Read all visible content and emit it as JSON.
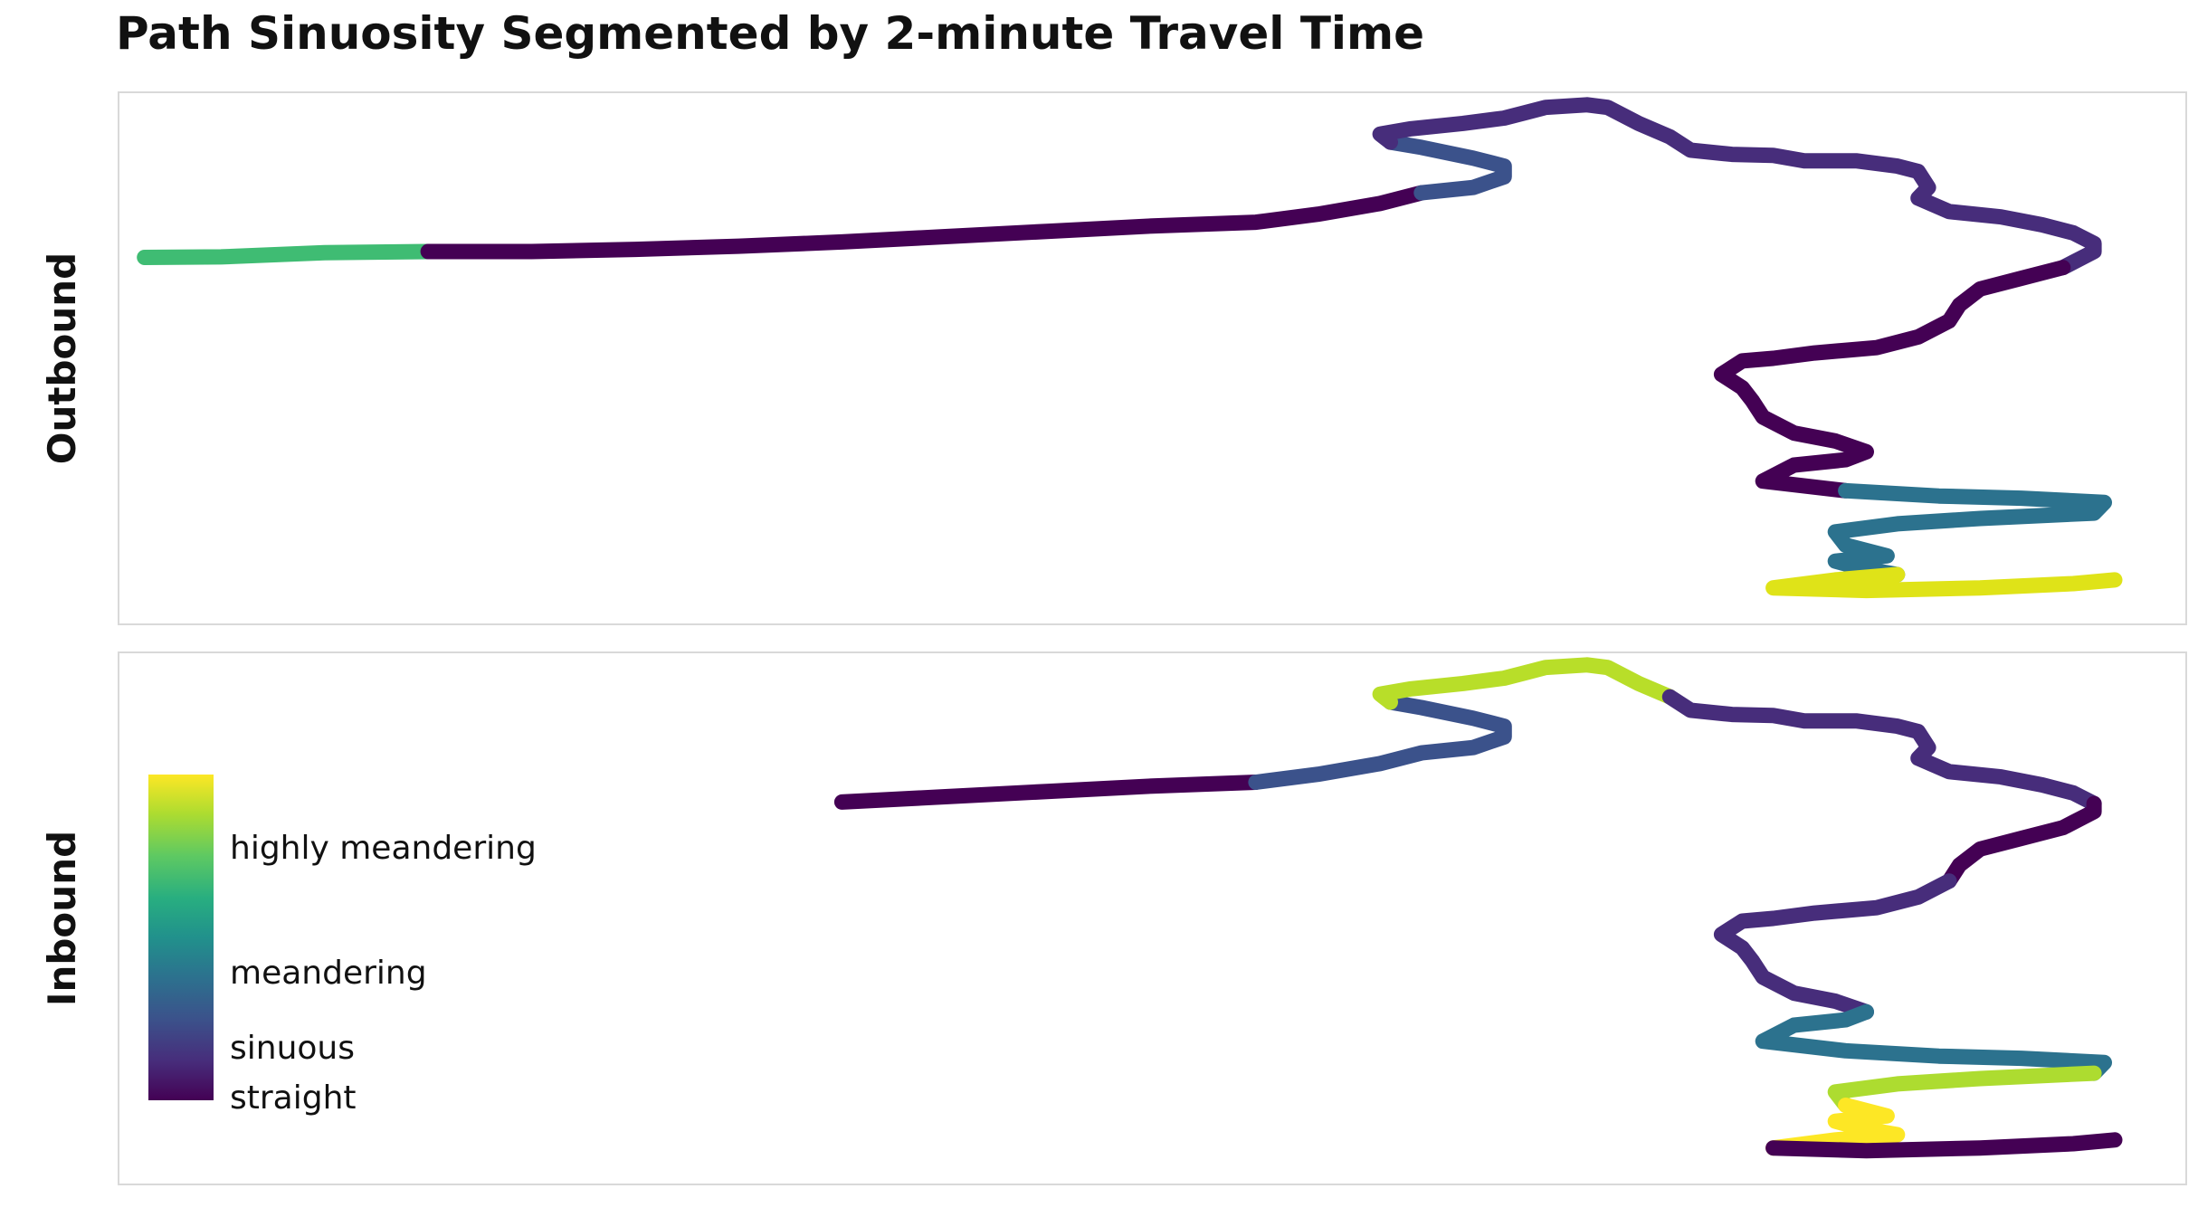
{
  "chart_data": {
    "type": "path",
    "title": "Path Sinuosity Segmented by 2-minute Travel Time",
    "facets": [
      "Outbound",
      "Inbound"
    ],
    "legend": {
      "labels": [
        "highly meandering",
        "meandering",
        "sinuous",
        "straight"
      ],
      "colormap": "viridis",
      "colors": [
        "#440154",
        "#472d7b",
        "#3b528b",
        "#2c728e",
        "#21918c",
        "#28ae80",
        "#5ec962",
        "#addc30",
        "#fde725"
      ]
    },
    "grid": false,
    "axes": "hidden",
    "route": [
      [
        0.013,
        0.311
      ],
      [
        0.05,
        0.31
      ],
      [
        0.1,
        0.302
      ],
      [
        0.15,
        0.3
      ],
      [
        0.2,
        0.3
      ],
      [
        0.25,
        0.296
      ],
      [
        0.3,
        0.29
      ],
      [
        0.35,
        0.282
      ],
      [
        0.4,
        0.272
      ],
      [
        0.45,
        0.262
      ],
      [
        0.5,
        0.252
      ],
      [
        0.55,
        0.245
      ],
      [
        0.58,
        0.23
      ],
      [
        0.61,
        0.21
      ],
      [
        0.63,
        0.19
      ],
      [
        0.655,
        0.18
      ],
      [
        0.67,
        0.16
      ],
      [
        0.67,
        0.14
      ],
      [
        0.655,
        0.125
      ],
      [
        0.63,
        0.105
      ],
      [
        0.615,
        0.095
      ],
      [
        0.61,
        0.08
      ],
      [
        0.625,
        0.07
      ],
      [
        0.65,
        0.06
      ],
      [
        0.67,
        0.05
      ],
      [
        0.68,
        0.04
      ],
      [
        0.69,
        0.03
      ],
      [
        0.71,
        0.025
      ],
      [
        0.72,
        0.03
      ],
      [
        0.735,
        0.06
      ],
      [
        0.75,
        0.085
      ],
      [
        0.76,
        0.11
      ],
      [
        0.78,
        0.118
      ],
      [
        0.8,
        0.12
      ],
      [
        0.815,
        0.13
      ],
      [
        0.84,
        0.13
      ],
      [
        0.86,
        0.14
      ],
      [
        0.87,
        0.15
      ],
      [
        0.875,
        0.18
      ],
      [
        0.87,
        0.2
      ],
      [
        0.885,
        0.225
      ],
      [
        0.91,
        0.235
      ],
      [
        0.93,
        0.25
      ],
      [
        0.945,
        0.265
      ],
      [
        0.955,
        0.285
      ],
      [
        0.955,
        0.3
      ],
      [
        0.94,
        0.33
      ],
      [
        0.92,
        0.35
      ],
      [
        0.9,
        0.37
      ],
      [
        0.89,
        0.4
      ],
      [
        0.885,
        0.43
      ],
      [
        0.87,
        0.46
      ],
      [
        0.85,
        0.48
      ],
      [
        0.82,
        0.49
      ],
      [
        0.8,
        0.5
      ],
      [
        0.785,
        0.505
      ],
      [
        0.775,
        0.53
      ],
      [
        0.785,
        0.555
      ],
      [
        0.79,
        0.58
      ],
      [
        0.795,
        0.61
      ],
      [
        0.81,
        0.64
      ],
      [
        0.83,
        0.655
      ],
      [
        0.845,
        0.675
      ],
      [
        0.835,
        0.69
      ],
      [
        0.81,
        0.7
      ],
      [
        0.795,
        0.73
      ],
      [
        0.835,
        0.748
      ],
      [
        0.88,
        0.758
      ],
      [
        0.92,
        0.762
      ],
      [
        0.96,
        0.77
      ],
      [
        0.955,
        0.79
      ],
      [
        0.9,
        0.8
      ],
      [
        0.86,
        0.81
      ],
      [
        0.83,
        0.825
      ],
      [
        0.835,
        0.85
      ],
      [
        0.855,
        0.87
      ],
      [
        0.83,
        0.88
      ],
      [
        0.845,
        0.895
      ],
      [
        0.86,
        0.905
      ],
      [
        0.83,
        0.915
      ],
      [
        0.8,
        0.93
      ],
      [
        0.845,
        0.935
      ],
      [
        0.9,
        0.93
      ],
      [
        0.945,
        0.922
      ],
      [
        0.965,
        0.915
      ]
    ],
    "segments": {
      "Outbound": [
        {
          "from": 0,
          "to": 3,
          "color": "#3fbc73"
        },
        {
          "from": 3,
          "to": 14,
          "color": "#440154"
        },
        {
          "from": 14,
          "to": 20,
          "color": "#3b528b"
        },
        {
          "from": 20,
          "to": 46,
          "color": "#472d7b"
        },
        {
          "from": 46,
          "to": 66,
          "color": "#440154"
        },
        {
          "from": 66,
          "to": 78,
          "color": "#2c728e"
        },
        {
          "from": 78,
          "to": 84,
          "color": "#dfe318"
        }
      ],
      "Inbound": [
        {
          "from": 7,
          "to": 11,
          "color": "#440154"
        },
        {
          "from": 11,
          "to": 20,
          "color": "#3b528b"
        },
        {
          "from": 20,
          "to": 30,
          "color": "#b8de29"
        },
        {
          "from": 30,
          "to": 44,
          "color": "#472d7b"
        },
        {
          "from": 44,
          "to": 50,
          "color": "#440154"
        },
        {
          "from": 50,
          "to": 62,
          "color": "#472d7b"
        },
        {
          "from": 62,
          "to": 70,
          "color": "#2c728e"
        },
        {
          "from": 70,
          "to": 74,
          "color": "#addc30"
        },
        {
          "from": 74,
          "to": 80,
          "color": "#fde725"
        },
        {
          "from": 80,
          "to": 84,
          "color": "#440154"
        }
      ]
    }
  }
}
